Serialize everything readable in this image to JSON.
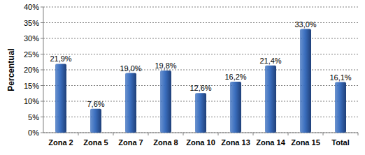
{
  "chart_data": {
    "type": "bar",
    "ylabel": "Percentual",
    "categories": [
      "Zona 2",
      "Zona 5",
      "Zona 7",
      "Zona 8",
      "Zona 10",
      "Zona 13",
      "Zona 14",
      "Zona 15",
      "Total"
    ],
    "values": [
      21.9,
      7.6,
      19.0,
      19.8,
      12.6,
      16.2,
      21.4,
      33.0,
      16.1
    ],
    "value_labels": [
      "21,9%",
      "7,6%",
      "19,0%",
      "19,8%",
      "12,6%",
      "16,2%",
      "21,4%",
      "33,0%",
      "16,1%"
    ],
    "color": "#3b6fbf",
    "ylim": [
      0,
      40
    ],
    "yticks": [
      {
        "value": 0,
        "label": "0%"
      },
      {
        "value": 5,
        "label": "5%"
      },
      {
        "value": 10,
        "label": "10%"
      },
      {
        "value": 15,
        "label": "15%"
      },
      {
        "value": 20,
        "label": "20%"
      },
      {
        "value": 25,
        "label": "25%"
      },
      {
        "value": 30,
        "label": "30%"
      },
      {
        "value": 35,
        "label": "35%"
      },
      {
        "value": 40,
        "label": "40%"
      }
    ],
    "grid": true,
    "data_labels": true
  }
}
